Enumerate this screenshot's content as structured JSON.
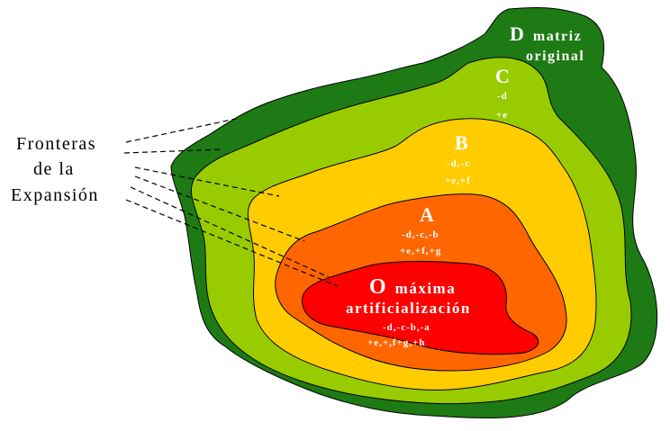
{
  "colors": {
    "zone_d": "#1e7a14",
    "zone_c": "#99cc00",
    "zone_b": "#ffcc00",
    "zone_a": "#ff6600",
    "zone_o": "#ff0000"
  },
  "zones": {
    "d": {
      "letter": "D",
      "line1": "matriz",
      "line2": "original"
    },
    "c": {
      "letter": "C",
      "detail1": "-d",
      "detail2": "+e"
    },
    "b": {
      "letter": "B",
      "detail1": "-d,-c",
      "detail2": "+e,+f"
    },
    "a": {
      "letter": "A",
      "detail1": "-d,-c,-b",
      "detail2": "+e,+f,+g"
    },
    "o": {
      "letter": "O",
      "line1": "máxima",
      "line2": "artificialización",
      "detail1": "-d,-c-b,-a",
      "detail2": "+e,+,f+g,+h"
    }
  },
  "frontier_label": {
    "line1": "Fronteras",
    "line2": "de la",
    "line3": "Expansión"
  }
}
